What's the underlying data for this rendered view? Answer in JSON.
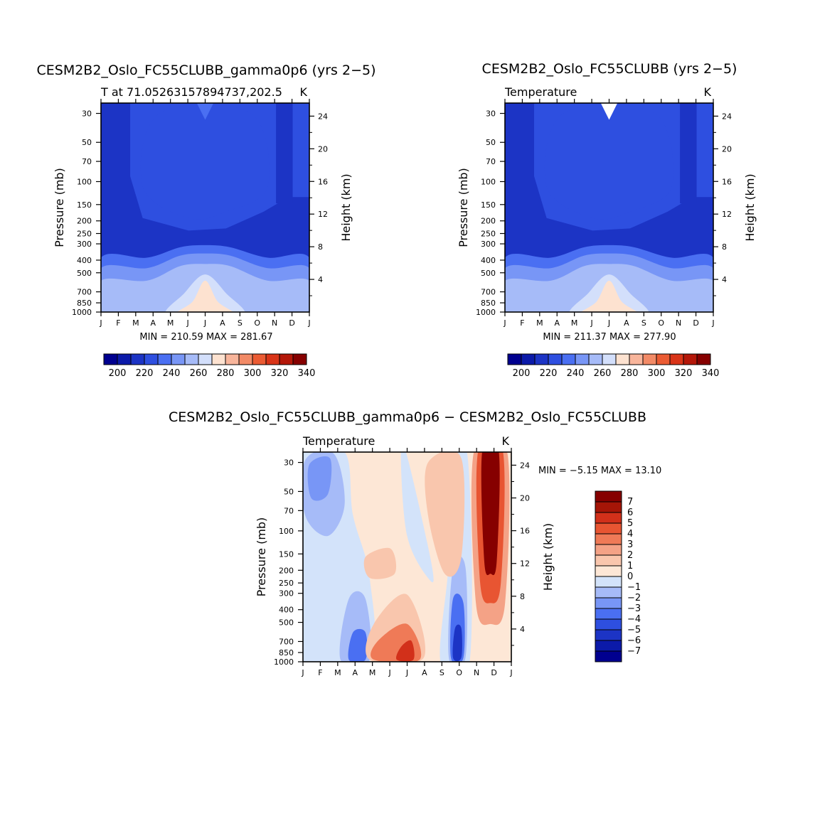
{
  "colors": {
    "temp_levels": [
      "#00008f",
      "#0b1aa9",
      "#1c34c5",
      "#2e4fe0",
      "#4a6ff2",
      "#7896f6",
      "#a6bbf8",
      "#d3dffb",
      "#fde2d0",
      "#f8b59b",
      "#f28a66",
      "#eb5b33",
      "#d93418",
      "#b41709",
      "#860000"
    ],
    "diff_levels": [
      "#00008f",
      "#0b1aa9",
      "#1c34c5",
      "#2e4fe0",
      "#4a6ff2",
      "#7896f6",
      "#a6bbf8",
      "#d3e3fa",
      "#fde7d6",
      "#f9c6ad",
      "#f4a286",
      "#ef7a57",
      "#e85532",
      "#d2301a",
      "#a51507",
      "#860000"
    ]
  },
  "chart_data": [
    {
      "type": "heatmap",
      "title": "CESM2B2_Oslo_FC55CLUBB_gamma0p6 (yrs 2−5)",
      "subtitle_left": "T at 71.05263157894737,202.5",
      "subtitle_right": "K",
      "ylabel": "Pressure (mb)",
      "ylabel_right": "Height (km)",
      "x_ticks": [
        "J",
        "F",
        "M",
        "A",
        "M",
        "J",
        "J",
        "A",
        "S",
        "O",
        "N",
        "D",
        "J"
      ],
      "y_ticks": [
        "30",
        "50",
        "70",
        "100",
        "150",
        "200",
        "250",
        "300",
        "400",
        "500",
        "700",
        "850",
        "1000"
      ],
      "y_right_ticks": [
        "4",
        "8",
        "12",
        "16",
        "20",
        "24"
      ],
      "min_max_text": "MIN = 210.59 MAX = 281.67",
      "colorbar_labels": [
        "200",
        "220",
        "240",
        "260",
        "280",
        "300",
        "320",
        "340"
      ],
      "min": 210.59,
      "max": 281.67
    },
    {
      "type": "heatmap",
      "title": "CESM2B2_Oslo_FC55CLUBB (yrs 2−5)",
      "subtitle_left": "Temperature",
      "subtitle_right": "K",
      "ylabel": "Pressure (mb)",
      "ylabel_right": "Height (km)",
      "x_ticks": [
        "J",
        "F",
        "M",
        "A",
        "M",
        "J",
        "J",
        "A",
        "S",
        "O",
        "N",
        "D",
        "J"
      ],
      "y_ticks": [
        "30",
        "50",
        "70",
        "100",
        "150",
        "200",
        "250",
        "300",
        "400",
        "500",
        "700",
        "850",
        "1000"
      ],
      "y_right_ticks": [
        "4",
        "8",
        "12",
        "16",
        "20",
        "24"
      ],
      "min_max_text": "MIN = 211.37 MAX = 277.90",
      "colorbar_labels": [
        "200",
        "220",
        "240",
        "260",
        "280",
        "300",
        "320",
        "340"
      ],
      "min": 211.37,
      "max": 277.9
    },
    {
      "type": "heatmap",
      "title": "CESM2B2_Oslo_FC55CLUBB_gamma0p6 − CESM2B2_Oslo_FC55CLUBB",
      "subtitle_left": "Temperature",
      "subtitle_right": "K",
      "ylabel": "Pressure (mb)",
      "ylabel_right": "Height (km)",
      "x_ticks": [
        "J",
        "F",
        "M",
        "A",
        "M",
        "J",
        "J",
        "A",
        "S",
        "O",
        "N",
        "D",
        "J"
      ],
      "y_ticks": [
        "30",
        "50",
        "70",
        "100",
        "150",
        "200",
        "250",
        "300",
        "400",
        "500",
        "700",
        "850",
        "1000"
      ],
      "y_right_ticks": [
        "4",
        "8",
        "12",
        "16",
        "20",
        "24"
      ],
      "min_max_text": "MIN =   −5.15 MAX =   13.10",
      "colorbar_labels": [
        "7",
        "6",
        "5",
        "4",
        "3",
        "2",
        "1",
        "0",
        "−1",
        "−2",
        "−3",
        "−4",
        "−5",
        "−6",
        "−7"
      ],
      "min": -5.15,
      "max": 13.1
    }
  ]
}
